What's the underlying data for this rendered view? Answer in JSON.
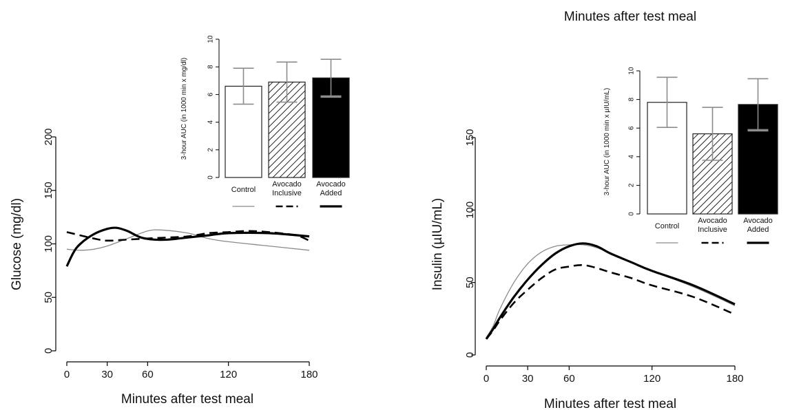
{
  "chart_data": [
    {
      "type": "line",
      "title": "",
      "xlabel": "Minutes after test meal",
      "ylabel": "Glucose (mg/dl)",
      "xlim": [
        0,
        180
      ],
      "ylim": [
        0,
        200
      ],
      "xticks": [
        0,
        30,
        60,
        120,
        180
      ],
      "yticks": [
        0,
        50,
        100,
        150,
        200
      ],
      "series": [
        {
          "key": "control",
          "style": "thin-gray",
          "x": [
            0,
            10,
            20,
            30,
            45,
            60,
            70,
            90,
            105,
            120,
            150,
            180
          ],
          "y": [
            95,
            94,
            95,
            98,
            105,
            112,
            113,
            110,
            105,
            102,
            98,
            94
          ]
        },
        {
          "key": "inclusive",
          "style": "dashed-black",
          "x": [
            0,
            10,
            20,
            30,
            45,
            60,
            75,
            90,
            105,
            120,
            135,
            150,
            170,
            180
          ],
          "y": [
            111,
            108,
            105,
            103,
            104,
            105,
            106,
            107,
            110,
            111,
            112,
            111,
            108,
            103
          ]
        },
        {
          "key": "added",
          "style": "thick-black",
          "x": [
            0,
            5,
            10,
            20,
            30,
            37,
            45,
            55,
            65,
            75,
            90,
            105,
            120,
            150,
            180
          ],
          "y": [
            79,
            92,
            100,
            109,
            114,
            115,
            112,
            106,
            104,
            104,
            106,
            108,
            110,
            110,
            107
          ]
        }
      ],
      "inset": {
        "type": "bar",
        "ylabel": "3-hour AUC (in 1000 min x mg/dl)",
        "ylim": [
          0,
          10
        ],
        "yticks": [
          0,
          2,
          4,
          6,
          8,
          10
        ],
        "categories": [
          [
            "Control"
          ],
          [
            "Avocado",
            "Inclusive"
          ],
          [
            "Avocado",
            "Added"
          ]
        ],
        "values": [
          6.6,
          6.9,
          7.2
        ],
        "errors": [
          1.3,
          1.45,
          1.35
        ],
        "fills": [
          "white",
          "hatched",
          "black"
        ],
        "legend_styles": [
          "thin-gray",
          "dashed-black",
          "thick-black"
        ]
      }
    },
    {
      "type": "line",
      "title": "Minutes after test meal",
      "xlabel": "Minutes after test meal",
      "ylabel": "Insulin (µIU/mL)",
      "xlim": [
        0,
        180
      ],
      "ylim": [
        0,
        150
      ],
      "xticks": [
        0,
        30,
        60,
        120,
        180
      ],
      "yticks": [
        0,
        50,
        100,
        150
      ],
      "series": [
        {
          "key": "control",
          "style": "thin-gray",
          "x": [
            0,
            5,
            10,
            20,
            30,
            40,
            50,
            60,
            70,
            80,
            90,
            105,
            120,
            150,
            180
          ],
          "y": [
            12,
            20,
            32,
            50,
            63,
            71,
            75,
            76,
            76,
            74,
            70,
            64,
            58,
            47,
            34
          ]
        },
        {
          "key": "inclusive",
          "style": "dashed-black",
          "x": [
            0,
            5,
            10,
            20,
            30,
            40,
            50,
            60,
            70,
            80,
            90,
            105,
            120,
            150,
            180
          ],
          "y": [
            11,
            17,
            24,
            36,
            45,
            53,
            59,
            61,
            62,
            60,
            57,
            53,
            48,
            40,
            28
          ]
        },
        {
          "key": "added",
          "style": "thick-black",
          "x": [
            0,
            5,
            10,
            20,
            30,
            40,
            50,
            60,
            70,
            80,
            90,
            105,
            120,
            150,
            180
          ],
          "y": [
            11,
            18,
            26,
            40,
            52,
            62,
            70,
            75,
            77,
            75,
            70,
            64,
            58,
            48,
            35
          ]
        }
      ],
      "inset": {
        "type": "bar",
        "ylabel": "3-hour AUC (in 1000 min x µIU/mL)",
        "ylim": [
          0,
          10
        ],
        "yticks": [
          0,
          2,
          4,
          6,
          8,
          10
        ],
        "categories": [
          [
            "Control"
          ],
          [
            "Avocado",
            "Inclusive"
          ],
          [
            "Avocado",
            "Added"
          ]
        ],
        "values": [
          7.8,
          5.6,
          7.65
        ],
        "errors": [
          1.75,
          1.85,
          1.8
        ],
        "fills": [
          "white",
          "hatched",
          "black"
        ],
        "legend_styles": [
          "thin-gray",
          "dashed-black",
          "thick-black"
        ]
      }
    }
  ]
}
